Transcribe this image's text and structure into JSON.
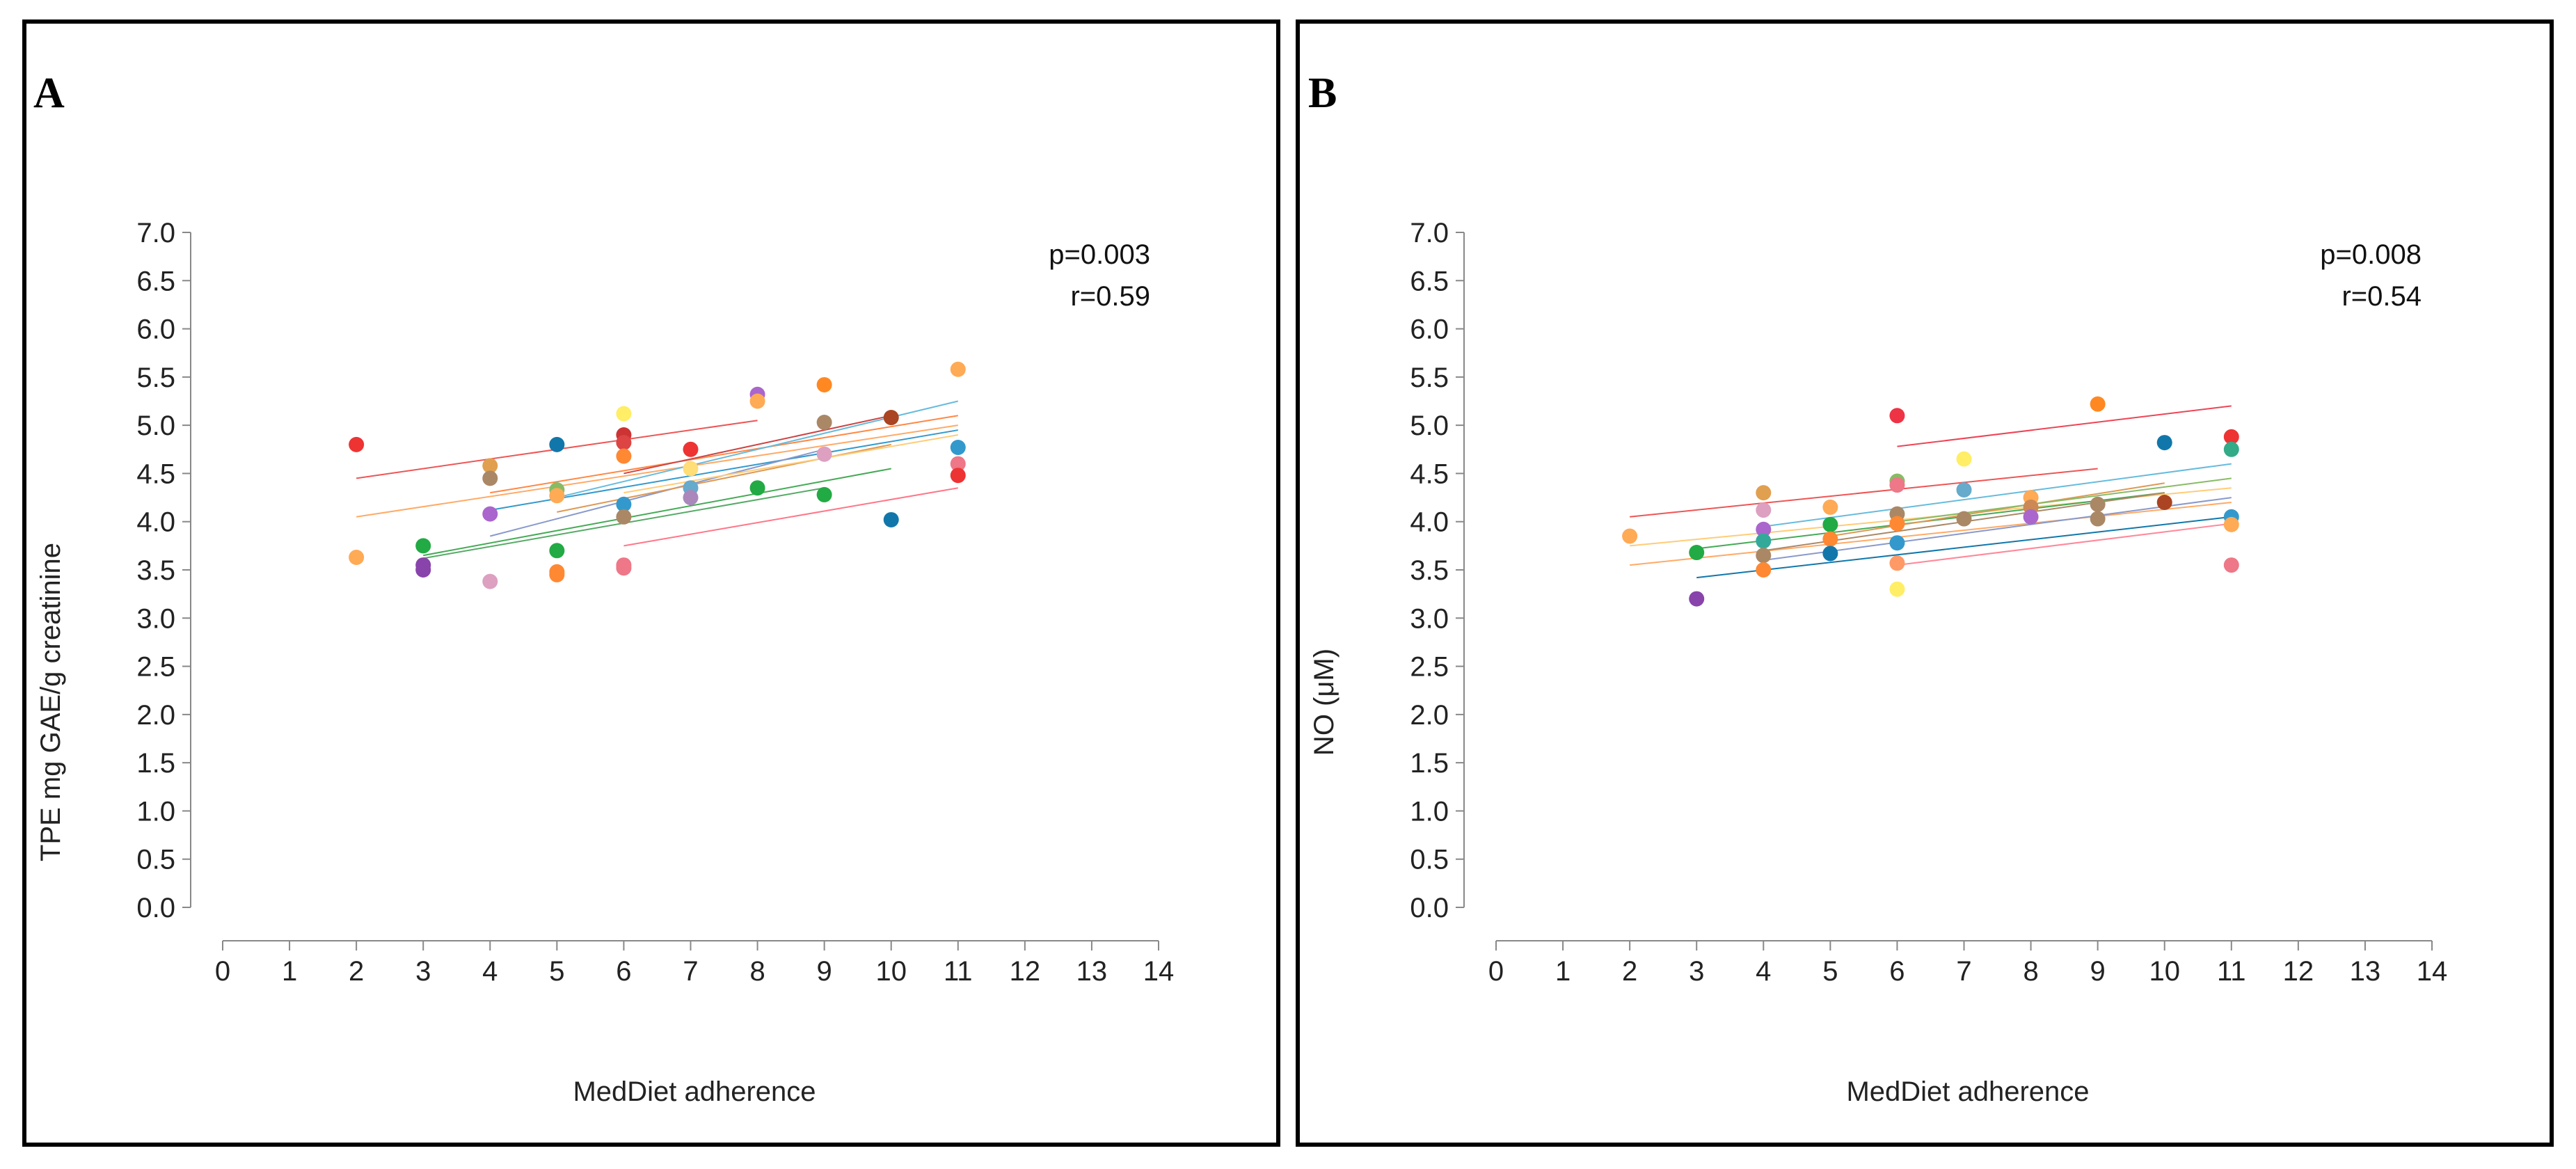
{
  "chart_data": [
    {
      "type": "scatter",
      "panel_label": "A",
      "xlabel": "MedDiet adherence",
      "ylabel": "TPE mg GAE/g creatinine",
      "xlim": [
        0,
        14
      ],
      "ylim": [
        0,
        7
      ],
      "x_ticks": [
        "0",
        "1",
        "2",
        "3",
        "4",
        "5",
        "6",
        "7",
        "8",
        "9",
        "10",
        "11",
        "12",
        "13",
        "14"
      ],
      "y_ticks": [
        "0.0",
        "0.5",
        "1.0",
        "1.5",
        "2.0",
        "2.5",
        "3.0",
        "3.5",
        "4.0",
        "4.5",
        "5.0",
        "5.5",
        "6.0",
        "6.5",
        "7.0"
      ],
      "stats": {
        "p": "p=0.003",
        "r": "r=0.59"
      },
      "points": [
        {
          "x": 2,
          "y": 4.8,
          "color": "#ee3333"
        },
        {
          "x": 2,
          "y": 3.63,
          "color": "#ffaa55"
        },
        {
          "x": 3,
          "y": 3.75,
          "color": "#22aa44"
        },
        {
          "x": 3,
          "y": 3.55,
          "color": "#8844aa"
        },
        {
          "x": 3,
          "y": 3.5,
          "color": "#8844aa"
        },
        {
          "x": 4,
          "y": 4.58,
          "color": "#e0a050"
        },
        {
          "x": 4,
          "y": 4.45,
          "color": "#aa8866"
        },
        {
          "x": 4,
          "y": 4.08,
          "color": "#aa66cc"
        },
        {
          "x": 4,
          "y": 3.38,
          "color": "#dda0c0"
        },
        {
          "x": 5,
          "y": 4.8,
          "color": "#1177aa"
        },
        {
          "x": 5,
          "y": 4.33,
          "color": "#88bb66"
        },
        {
          "x": 5,
          "y": 4.27,
          "color": "#ffaa55"
        },
        {
          "x": 5,
          "y": 3.7,
          "color": "#22aa44"
        },
        {
          "x": 5,
          "y": 3.48,
          "color": "#ff8833"
        },
        {
          "x": 5,
          "y": 3.45,
          "color": "#ff8833"
        },
        {
          "x": 6,
          "y": 5.12,
          "color": "#ffee66"
        },
        {
          "x": 6,
          "y": 4.9,
          "color": "#cc3333"
        },
        {
          "x": 6,
          "y": 4.82,
          "color": "#dd4444"
        },
        {
          "x": 6,
          "y": 4.68,
          "color": "#ff8833"
        },
        {
          "x": 6,
          "y": 4.18,
          "color": "#3399cc"
        },
        {
          "x": 6,
          "y": 4.05,
          "color": "#aa8866"
        },
        {
          "x": 6,
          "y": 3.55,
          "color": "#ee7788"
        },
        {
          "x": 6,
          "y": 3.52,
          "color": "#ee7788"
        },
        {
          "x": 7,
          "y": 4.75,
          "color": "#ee3333"
        },
        {
          "x": 7,
          "y": 4.55,
          "color": "#ffdd77"
        },
        {
          "x": 7,
          "y": 4.35,
          "color": "#66aacc"
        },
        {
          "x": 7,
          "y": 4.25,
          "color": "#aa88bb"
        },
        {
          "x": 8,
          "y": 5.32,
          "color": "#aa66cc"
        },
        {
          "x": 8,
          "y": 5.25,
          "color": "#ffaa55"
        },
        {
          "x": 8,
          "y": 4.35,
          "color": "#22aa44"
        },
        {
          "x": 9,
          "y": 5.42,
          "color": "#ff8822"
        },
        {
          "x": 9,
          "y": 5.03,
          "color": "#aa8866"
        },
        {
          "x": 9,
          "y": 4.7,
          "color": "#dda0c0"
        },
        {
          "x": 9,
          "y": 4.28,
          "color": "#22aa44"
        },
        {
          "x": 10,
          "y": 5.08,
          "color": "#aa4422"
        },
        {
          "x": 10,
          "y": 4.02,
          "color": "#1177aa"
        },
        {
          "x": 11,
          "y": 5.58,
          "color": "#ffaa55"
        },
        {
          "x": 11,
          "y": 4.77,
          "color": "#3399cc"
        },
        {
          "x": 11,
          "y": 4.6,
          "color": "#ee7788"
        },
        {
          "x": 11,
          "y": 4.48,
          "color": "#ee3333"
        }
      ],
      "lines": [
        {
          "x": [
            2,
            8
          ],
          "y": [
            4.45,
            5.05
          ],
          "color": "#ee5555"
        },
        {
          "x": [
            2,
            11
          ],
          "y": [
            4.05,
            5.0
          ],
          "color": "#ffaa66"
        },
        {
          "x": [
            3,
            10
          ],
          "y": [
            3.65,
            4.55
          ],
          "color": "#44aa55"
        },
        {
          "x": [
            3,
            9
          ],
          "y": [
            3.62,
            4.35
          ],
          "color": "#55aa66"
        },
        {
          "x": [
            4,
            11
          ],
          "y": [
            4.3,
            5.1
          ],
          "color": "#ff8844"
        },
        {
          "x": [
            4,
            11
          ],
          "y": [
            4.12,
            4.95
          ],
          "color": "#3399cc"
        },
        {
          "x": [
            4,
            9
          ],
          "y": [
            3.85,
            4.75
          ],
          "color": "#8899cc"
        },
        {
          "x": [
            5,
            11
          ],
          "y": [
            4.25,
            5.25
          ],
          "color": "#66bbdd"
        },
        {
          "x": [
            5,
            10
          ],
          "y": [
            4.1,
            4.8
          ],
          "color": "#dd9955"
        },
        {
          "x": [
            6,
            10
          ],
          "y": [
            4.5,
            5.1
          ],
          "color": "#cc4444"
        },
        {
          "x": [
            6,
            11
          ],
          "y": [
            3.75,
            4.35
          ],
          "color": "#ff7788"
        },
        {
          "x": [
            6,
            11
          ],
          "y": [
            4.3,
            4.9
          ],
          "color": "#ffcc77"
        }
      ]
    },
    {
      "type": "scatter",
      "panel_label": "B",
      "xlabel": "MedDiet adherence",
      "ylabel": "NO (μM)",
      "xlim": [
        0,
        14
      ],
      "ylim": [
        0,
        7
      ],
      "x_ticks": [
        "0",
        "1",
        "2",
        "3",
        "4",
        "5",
        "6",
        "7",
        "8",
        "9",
        "10",
        "11",
        "12",
        "13",
        "14"
      ],
      "y_ticks": [
        "0.0",
        "0.5",
        "1.0",
        "1.5",
        "2.0",
        "2.5",
        "3.0",
        "3.5",
        "4.0",
        "4.5",
        "5.0",
        "5.5",
        "6.0",
        "6.5",
        "7.0"
      ],
      "stats": {
        "p": "p=0.008",
        "r": "r=0.54"
      },
      "points": [
        {
          "x": 2,
          "y": 3.85,
          "color": "#ffaa55"
        },
        {
          "x": 3,
          "y": 3.68,
          "color": "#22aa44"
        },
        {
          "x": 3,
          "y": 3.2,
          "color": "#8844aa"
        },
        {
          "x": 4,
          "y": 4.3,
          "color": "#e0a050"
        },
        {
          "x": 4,
          "y": 4.12,
          "color": "#dda0c0"
        },
        {
          "x": 4,
          "y": 3.92,
          "color": "#aa66cc"
        },
        {
          "x": 4,
          "y": 3.8,
          "color": "#33aa99"
        },
        {
          "x": 4,
          "y": 3.65,
          "color": "#aa8866"
        },
        {
          "x": 4,
          "y": 3.5,
          "color": "#ff8833"
        },
        {
          "x": 5,
          "y": 4.15,
          "color": "#ffaa55"
        },
        {
          "x": 5,
          "y": 3.97,
          "color": "#22aa44"
        },
        {
          "x": 5,
          "y": 3.82,
          "color": "#ff8833"
        },
        {
          "x": 5,
          "y": 3.67,
          "color": "#1177aa"
        },
        {
          "x": 6,
          "y": 5.1,
          "color": "#ee3344"
        },
        {
          "x": 6,
          "y": 4.42,
          "color": "#88bb66"
        },
        {
          "x": 6,
          "y": 4.38,
          "color": "#ee7788"
        },
        {
          "x": 6,
          "y": 4.08,
          "color": "#aa8866"
        },
        {
          "x": 6,
          "y": 3.98,
          "color": "#ff8833"
        },
        {
          "x": 6,
          "y": 3.78,
          "color": "#3399cc"
        },
        {
          "x": 6,
          "y": 3.57,
          "color": "#ff9966"
        },
        {
          "x": 6,
          "y": 3.3,
          "color": "#ffee66"
        },
        {
          "x": 7,
          "y": 4.65,
          "color": "#ffee66"
        },
        {
          "x": 7,
          "y": 4.33,
          "color": "#66aacc"
        },
        {
          "x": 7,
          "y": 4.03,
          "color": "#aa8866"
        },
        {
          "x": 8,
          "y": 4.25,
          "color": "#ffaa55"
        },
        {
          "x": 8,
          "y": 4.15,
          "color": "#cc8855"
        },
        {
          "x": 8,
          "y": 4.05,
          "color": "#aa66cc"
        },
        {
          "x": 9,
          "y": 5.22,
          "color": "#ff8822"
        },
        {
          "x": 9,
          "y": 4.18,
          "color": "#aa8866"
        },
        {
          "x": 9,
          "y": 4.03,
          "color": "#aa8866"
        },
        {
          "x": 10,
          "y": 4.82,
          "color": "#1177aa"
        },
        {
          "x": 10,
          "y": 4.2,
          "color": "#aa4422"
        },
        {
          "x": 11,
          "y": 4.88,
          "color": "#ee3333"
        },
        {
          "x": 11,
          "y": 4.75,
          "color": "#33aa88"
        },
        {
          "x": 11,
          "y": 4.05,
          "color": "#3399cc"
        },
        {
          "x": 11,
          "y": 3.97,
          "color": "#ffaa55"
        },
        {
          "x": 11,
          "y": 3.55,
          "color": "#ee7788"
        }
      ],
      "lines": [
        {
          "x": [
            2,
            9
          ],
          "y": [
            4.05,
            4.55
          ],
          "color": "#ee5555"
        },
        {
          "x": [
            2,
            11
          ],
          "y": [
            3.75,
            4.35
          ],
          "color": "#ffcc77"
        },
        {
          "x": [
            2,
            11
          ],
          "y": [
            3.55,
            4.2
          ],
          "color": "#ffaa66"
        },
        {
          "x": [
            3,
            10
          ],
          "y": [
            3.72,
            4.3
          ],
          "color": "#44aa55"
        },
        {
          "x": [
            3,
            11
          ],
          "y": [
            3.42,
            4.05
          ],
          "color": "#1177aa"
        },
        {
          "x": [
            4,
            11
          ],
          "y": [
            3.95,
            4.6
          ],
          "color": "#66bbdd"
        },
        {
          "x": [
            4,
            10
          ],
          "y": [
            3.7,
            4.3
          ],
          "color": "#aa8866"
        },
        {
          "x": [
            4,
            11
          ],
          "y": [
            3.6,
            4.25
          ],
          "color": "#8899cc"
        },
        {
          "x": [
            5,
            10
          ],
          "y": [
            3.85,
            4.4
          ],
          "color": "#dd9955"
        },
        {
          "x": [
            6,
            11
          ],
          "y": [
            4.78,
            5.2
          ],
          "color": "#ee4455"
        },
        {
          "x": [
            6,
            11
          ],
          "y": [
            3.55,
            3.98
          ],
          "color": "#ff8899"
        },
        {
          "x": [
            6,
            11
          ],
          "y": [
            4.0,
            4.45
          ],
          "color": "#88bb66"
        }
      ]
    }
  ]
}
